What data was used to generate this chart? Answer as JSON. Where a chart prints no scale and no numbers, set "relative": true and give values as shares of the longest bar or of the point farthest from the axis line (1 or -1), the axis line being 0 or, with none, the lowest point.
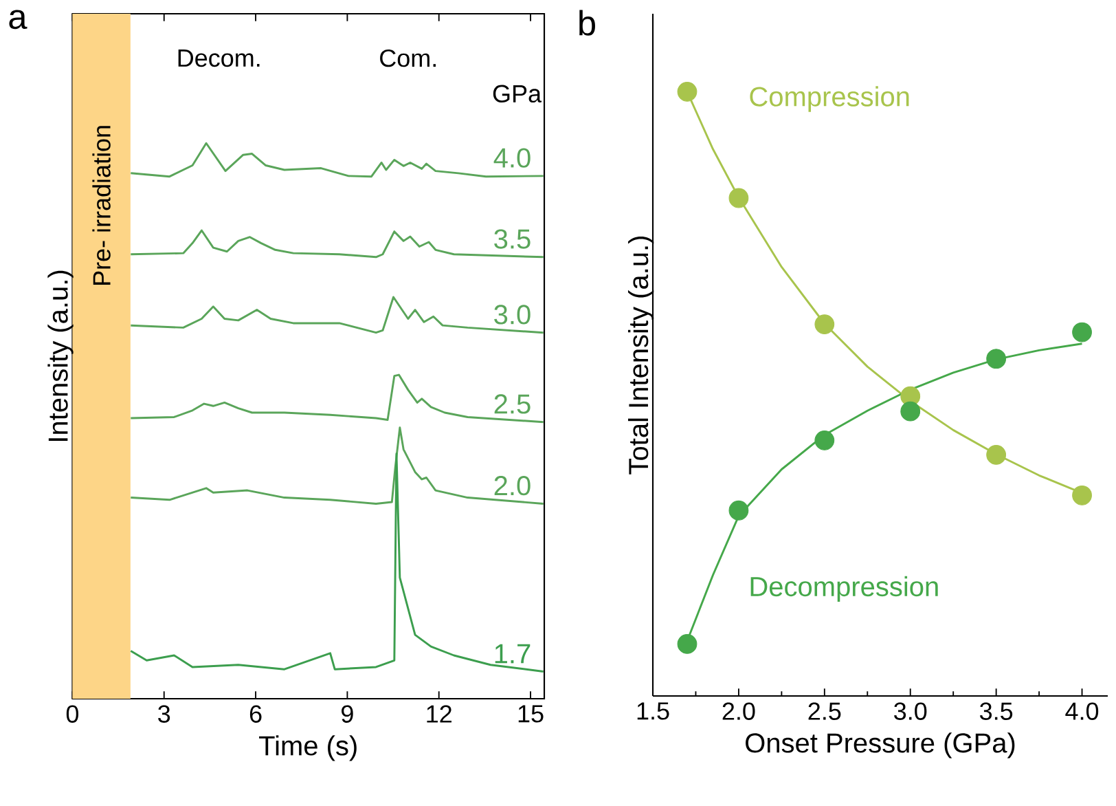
{
  "chart_data": [
    {
      "type": "line",
      "title": "a",
      "xlabel": "Time (s)",
      "ylabel": "Intensity (a.u.)",
      "relative": true,
      "tick_labels": "x",
      "xlim": [
        0,
        15.45
      ],
      "xticks": [
        0,
        3,
        6,
        9,
        12,
        15
      ],
      "bands": [
        {
          "axis": "x",
          "from": 0,
          "to": 1.9,
          "label": "Pre- irradiation",
          "color": "#fdd587"
        }
      ],
      "annotations": [
        "Decom.",
        "Com.",
        "GPa"
      ],
      "series": [
        {
          "name": "4.0",
          "color": "#5aa55a",
          "x": [
            1.91,
            3.18,
            3.93,
            4.38,
            5.01,
            5.59,
            5.88,
            6.33,
            6.94,
            8.14,
            9.04,
            9.79,
            10.12,
            10.27,
            10.54,
            10.84,
            11.06,
            11.44,
            11.59,
            11.89,
            12.64,
            13.54,
            15.42
          ],
          "values": [
            0.946,
            0.94,
            0.96,
            1.0,
            0.95,
            0.979,
            0.981,
            0.96,
            0.952,
            0.955,
            0.941,
            0.94,
            0.965,
            0.952,
            0.97,
            0.959,
            0.965,
            0.954,
            0.963,
            0.95,
            0.946,
            0.94,
            0.941
          ]
        },
        {
          "name": "3.5",
          "color": "#5aa55a",
          "x": [
            1.91,
            3.63,
            3.93,
            4.23,
            4.61,
            5.06,
            5.43,
            5.81,
            6.18,
            6.64,
            7.23,
            8.74,
            9.94,
            10.16,
            10.54,
            10.84,
            11.06,
            11.36,
            11.67,
            11.89,
            12.49,
            15.42
          ],
          "values": [
            0.8,
            0.802,
            0.82,
            0.843,
            0.812,
            0.805,
            0.824,
            0.831,
            0.82,
            0.808,
            0.802,
            0.8,
            0.795,
            0.8,
            0.841,
            0.824,
            0.832,
            0.814,
            0.822,
            0.808,
            0.8,
            0.795
          ]
        },
        {
          "name": "3.0",
          "color": "#5aa55a",
          "x": [
            1.91,
            3.63,
            4.23,
            4.61,
            4.98,
            5.43,
            6.04,
            6.49,
            7.23,
            8.74,
            9.94,
            10.16,
            10.51,
            10.99,
            11.22,
            11.51,
            11.82,
            12.12,
            12.94,
            15.42
          ],
          "values": [
            0.672,
            0.668,
            0.684,
            0.706,
            0.684,
            0.681,
            0.7,
            0.684,
            0.676,
            0.676,
            0.659,
            0.663,
            0.723,
            0.684,
            0.7,
            0.678,
            0.688,
            0.672,
            0.668,
            0.659
          ]
        },
        {
          "name": "2.5",
          "color": "#5aa55a",
          "x": [
            1.91,
            3.33,
            3.93,
            4.31,
            4.61,
            4.98,
            5.43,
            5.88,
            6.94,
            8.44,
            9.94,
            10.32,
            10.54,
            10.69,
            10.99,
            11.29,
            11.44,
            11.74,
            12.19,
            12.94,
            15.42
          ],
          "values": [
            0.505,
            0.507,
            0.519,
            0.531,
            0.527,
            0.533,
            0.523,
            0.515,
            0.515,
            0.511,
            0.505,
            0.502,
            0.581,
            0.583,
            0.556,
            0.533,
            0.54,
            0.525,
            0.515,
            0.507,
            0.498
          ]
        },
        {
          "name": "2.0",
          "color": "#5aa55a",
          "x": [
            1.91,
            3.18,
            4.38,
            4.61,
            5.73,
            6.94,
            8.44,
            9.94,
            10.46,
            10.57,
            10.72,
            10.84,
            11.22,
            11.44,
            11.59,
            11.89,
            12.94,
            15.42
          ],
          "values": [
            0.362,
            0.358,
            0.379,
            0.371,
            0.375,
            0.362,
            0.358,
            0.351,
            0.354,
            0.416,
            0.488,
            0.449,
            0.408,
            0.395,
            0.398,
            0.375,
            0.362,
            0.351
          ]
        },
        {
          "name": "1.7",
          "color": "#3c9e4e",
          "x": [
            1.91,
            2.43,
            3.33,
            3.93,
            5.43,
            6.94,
            8.44,
            8.59,
            9.94,
            10.54,
            10.61,
            10.72,
            11.22,
            11.74,
            12.49,
            13.69,
            15.42
          ],
          "values": [
            0.086,
            0.069,
            0.078,
            0.057,
            0.061,
            0.053,
            0.082,
            0.053,
            0.057,
            0.069,
            0.441,
            0.218,
            0.115,
            0.094,
            0.078,
            0.061,
            0.049
          ]
        }
      ]
    },
    {
      "type": "scatter",
      "title": "b",
      "xlabel": "Onset Pressure (GPa)",
      "ylabel": "Total Intensity (a.u.)",
      "relative": true,
      "tick_labels": "x",
      "xlim": [
        1.5,
        4.15
      ],
      "xticks": [
        {
          "value": 1.5,
          "label": "1.5"
        },
        {
          "value": 2,
          "label": "2.0"
        },
        {
          "value": 2.5,
          "label": "2.5"
        },
        {
          "value": 3,
          "label": "3.0"
        },
        {
          "value": 3.5,
          "label": "3.5"
        },
        {
          "value": 4,
          "label": "4.0"
        }
      ],
      "series": [
        {
          "name": "Compression",
          "color": "#a8c44c",
          "marker": "circle",
          "x": [
            1.7,
            2.0,
            2.5,
            3.0,
            3.5,
            4.0
          ],
          "values": [
            1.0,
            0.824,
            0.615,
            0.496,
            0.399,
            0.332
          ]
        },
        {
          "name": "Decompression",
          "color": "#45a84a",
          "marker": "circle",
          "x": [
            1.7,
            2.0,
            2.5,
            3.0,
            3.5,
            4.0
          ],
          "values": [
            0.086,
            0.307,
            0.423,
            0.471,
            0.558,
            0.602
          ]
        },
        {
          "type": "line",
          "marker": "none",
          "color": "#a8c44c",
          "x": [
            1.7,
            1.85,
            2.0,
            2.25,
            2.5,
            2.75,
            3.0,
            3.25,
            3.5,
            3.75,
            4.0
          ],
          "values": [
            1.0,
            0.905,
            0.825,
            0.71,
            0.616,
            0.545,
            0.488,
            0.44,
            0.4,
            0.365,
            0.336
          ]
        },
        {
          "type": "line",
          "marker": "none",
          "color": "#45a84a",
          "x": [
            1.7,
            1.85,
            2.0,
            2.25,
            2.5,
            2.75,
            3.0,
            3.25,
            3.5,
            3.75,
            4.0
          ],
          "values": [
            0.091,
            0.2,
            0.298,
            0.375,
            0.432,
            0.472,
            0.507,
            0.535,
            0.557,
            0.572,
            0.583
          ]
        }
      ]
    }
  ]
}
